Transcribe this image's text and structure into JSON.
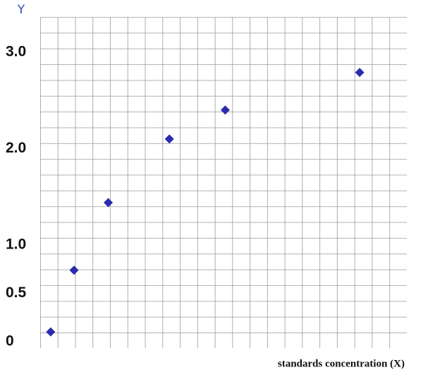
{
  "chart_data": {
    "type": "scatter",
    "x_label": "standards concentration (X)",
    "y_label": "Y",
    "x": [
      0.6,
      1.94,
      3.9,
      7.4,
      10.6,
      18.3
    ],
    "values": [
      0.1,
      0.74,
      1.44,
      2.1,
      2.4,
      2.79
    ],
    "color": "#2b2bb0",
    "xlim": [
      0,
      21
    ],
    "ylim": [
      -0.06,
      3.38
    ],
    "yticks": [
      0,
      0.5,
      {
        "value": 1,
        "label": "1.0"
      },
      {
        "value": 2,
        "label": "2.0"
      },
      {
        "value": 3,
        "label": "3.0"
      }
    ],
    "grid": true
  }
}
